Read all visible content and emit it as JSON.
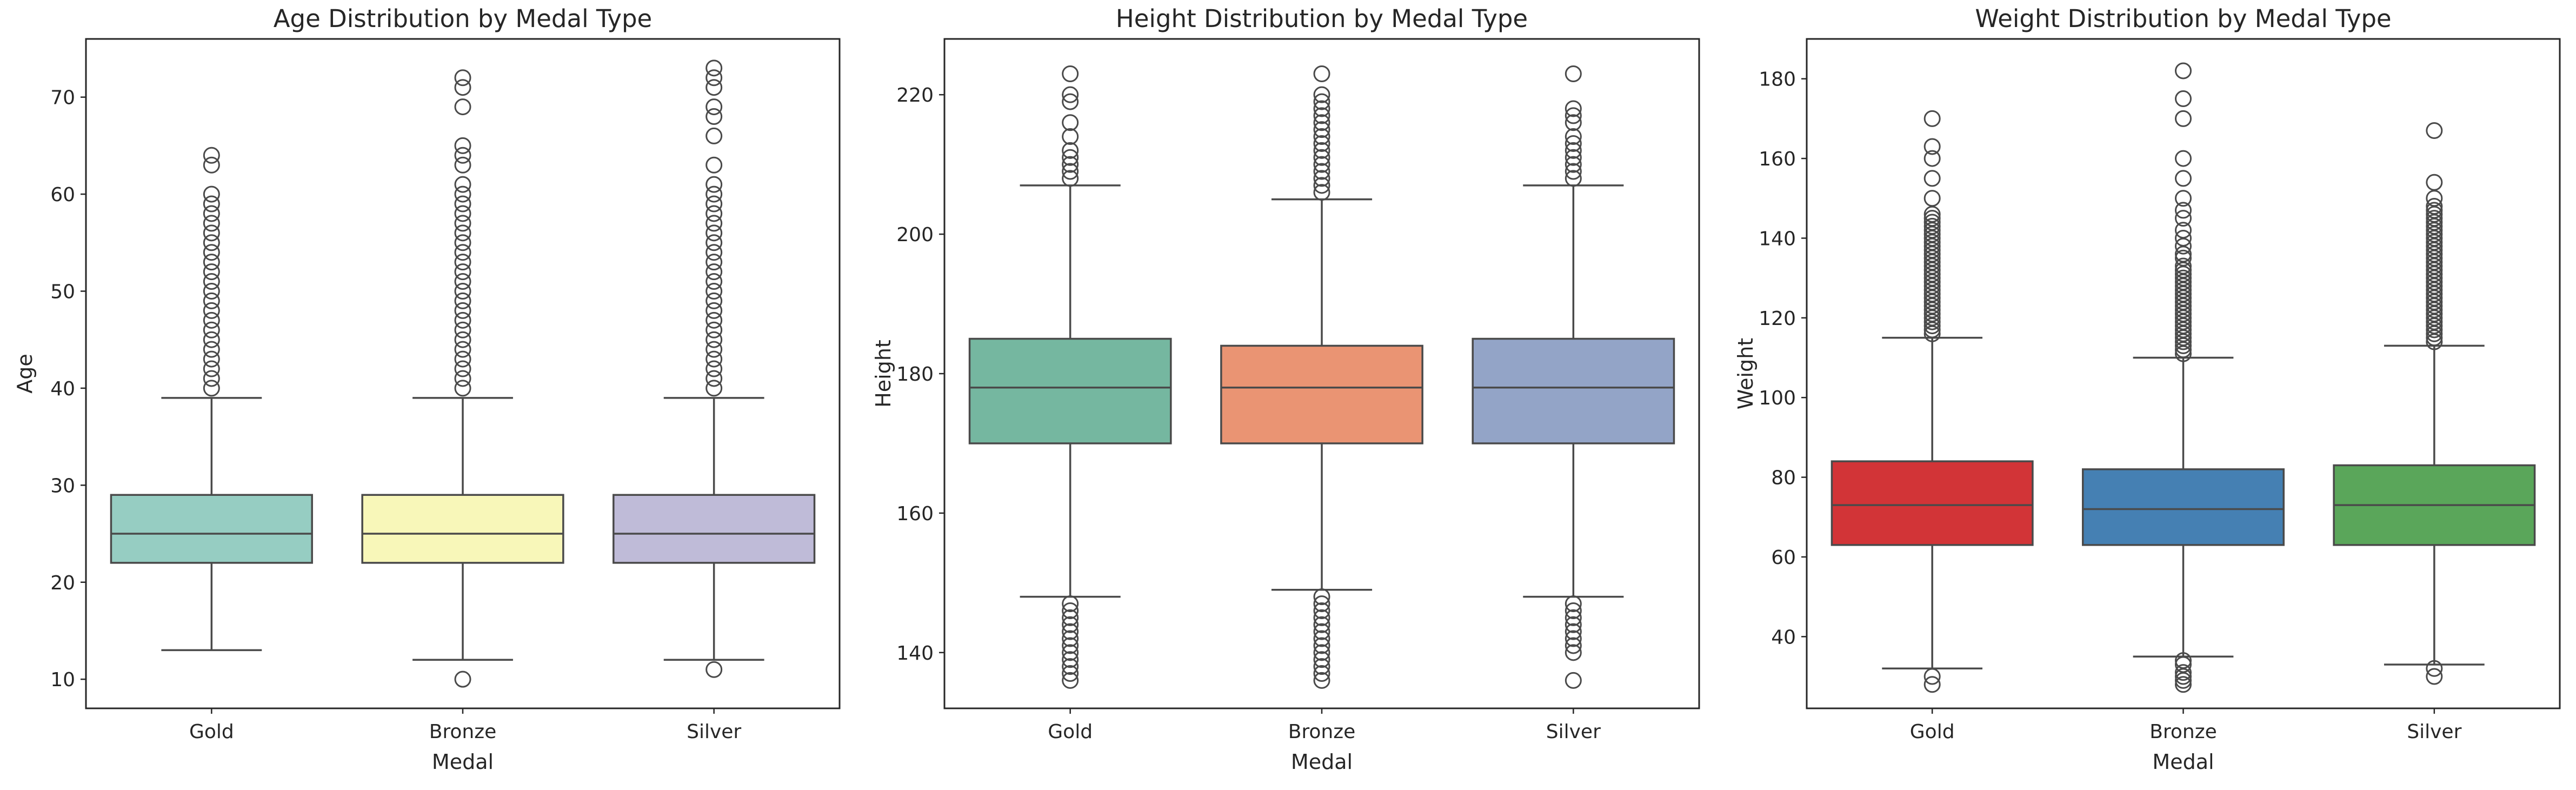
{
  "chart_data": [
    {
      "type": "box",
      "title": "Age Distribution by Medal Type",
      "xlabel": "Medal",
      "ylabel": "Age",
      "ylim": [
        7,
        76
      ],
      "yticks": [
        10,
        20,
        30,
        40,
        50,
        60,
        70
      ],
      "grid": false,
      "categories": [
        "Gold",
        "Bronze",
        "Silver"
      ],
      "colors": [
        "#96cdc2",
        "#f8f7b9",
        "#bfbbd8"
      ],
      "series": [
        {
          "category": "Gold",
          "whisker_low": 13,
          "q1": 22,
          "median": 25,
          "q3": 29,
          "whisker_high": 39,
          "outliers": [
            40,
            41,
            42,
            43,
            44,
            45,
            46,
            47,
            48,
            49,
            50,
            51,
            52,
            53,
            54,
            55,
            56,
            57,
            58,
            59,
            60,
            63,
            64
          ]
        },
        {
          "category": "Bronze",
          "whisker_low": 12,
          "q1": 22,
          "median": 25,
          "q3": 29,
          "whisker_high": 39,
          "outliers": [
            10,
            40,
            41,
            42,
            43,
            44,
            45,
            46,
            47,
            48,
            49,
            50,
            51,
            52,
            53,
            54,
            55,
            56,
            57,
            58,
            59,
            60,
            61,
            63,
            64,
            65,
            69,
            71,
            72
          ]
        },
        {
          "category": "Silver",
          "whisker_low": 12,
          "q1": 22,
          "median": 25,
          "q3": 29,
          "whisker_high": 39,
          "outliers": [
            11,
            40,
            41,
            42,
            43,
            44,
            45,
            46,
            47,
            48,
            49,
            50,
            51,
            52,
            53,
            54,
            55,
            56,
            57,
            58,
            59,
            60,
            61,
            63,
            66,
            68,
            69,
            71,
            72,
            73
          ]
        }
      ]
    },
    {
      "type": "box",
      "title": "Height Distribution by Medal Type",
      "xlabel": "Medal",
      "ylabel": "Height",
      "ylim": [
        132,
        228
      ],
      "yticks": [
        140,
        160,
        180,
        200,
        220
      ],
      "grid": false,
      "categories": [
        "Gold",
        "Bronze",
        "Silver"
      ],
      "colors": [
        "#75b7a0",
        "#ea9473",
        "#93a4c7"
      ],
      "series": [
        {
          "category": "Gold",
          "whisker_low": 148,
          "q1": 170,
          "median": 178,
          "q3": 185,
          "whisker_high": 207,
          "outliers": [
            136,
            137,
            138,
            139,
            140,
            141,
            142,
            143,
            144,
            145,
            146,
            147,
            208,
            209,
            210,
            211,
            212,
            214,
            216,
            219,
            220,
            223
          ]
        },
        {
          "category": "Bronze",
          "whisker_low": 149,
          "q1": 170,
          "median": 178,
          "q3": 184,
          "whisker_high": 205,
          "outliers": [
            136,
            137,
            138,
            139,
            140,
            141,
            142,
            143,
            144,
            145,
            146,
            147,
            148,
            206,
            207,
            208,
            209,
            210,
            211,
            212,
            213,
            214,
            215,
            216,
            217,
            218,
            219,
            220,
            223
          ]
        },
        {
          "category": "Silver",
          "whisker_low": 148,
          "q1": 170,
          "median": 178,
          "q3": 185,
          "whisker_high": 207,
          "outliers": [
            136,
            140,
            141,
            142,
            143,
            144,
            145,
            146,
            147,
            208,
            209,
            210,
            211,
            212,
            213,
            214,
            216,
            217,
            218,
            223
          ]
        }
      ]
    },
    {
      "type": "box",
      "title": "Weight Distribution by Medal Type",
      "xlabel": "Medal",
      "ylabel": "Weight",
      "ylim": [
        22,
        190
      ],
      "yticks": [
        40,
        60,
        80,
        100,
        120,
        140,
        160,
        180
      ],
      "grid": false,
      "categories": [
        "Gold",
        "Bronze",
        "Silver"
      ],
      "colors": [
        "#d23437",
        "#4580b3",
        "#5aa65a"
      ],
      "series": [
        {
          "category": "Gold",
          "whisker_low": 32,
          "q1": 63,
          "median": 73,
          "q3": 84,
          "whisker_high": 115,
          "outliers": [
            28,
            30,
            116,
            117,
            118,
            119,
            120,
            121,
            122,
            123,
            124,
            125,
            126,
            127,
            128,
            129,
            130,
            131,
            132,
            133,
            134,
            135,
            136,
            137,
            138,
            139,
            140,
            141,
            142,
            143,
            144,
            145,
            146,
            150,
            155,
            160,
            163,
            170
          ]
        },
        {
          "category": "Bronze",
          "whisker_low": 35,
          "q1": 63,
          "median": 72,
          "q3": 82,
          "whisker_high": 110,
          "outliers": [
            28,
            29,
            30,
            31,
            33,
            34,
            111,
            112,
            113,
            114,
            115,
            116,
            117,
            118,
            119,
            120,
            121,
            122,
            123,
            124,
            125,
            126,
            127,
            128,
            129,
            130,
            131,
            132,
            133,
            135,
            136,
            138,
            140,
            142,
            145,
            147,
            150,
            155,
            160,
            170,
            175,
            182
          ]
        },
        {
          "category": "Silver",
          "whisker_low": 33,
          "q1": 63,
          "median": 73,
          "q3": 83,
          "whisker_high": 113,
          "outliers": [
            30,
            32,
            114,
            115,
            116,
            117,
            118,
            119,
            120,
            121,
            122,
            123,
            124,
            125,
            126,
            127,
            128,
            129,
            130,
            131,
            132,
            133,
            134,
            135,
            136,
            137,
            138,
            139,
            140,
            141,
            142,
            143,
            144,
            145,
            146,
            147,
            148,
            150,
            154,
            167
          ]
        }
      ]
    }
  ]
}
